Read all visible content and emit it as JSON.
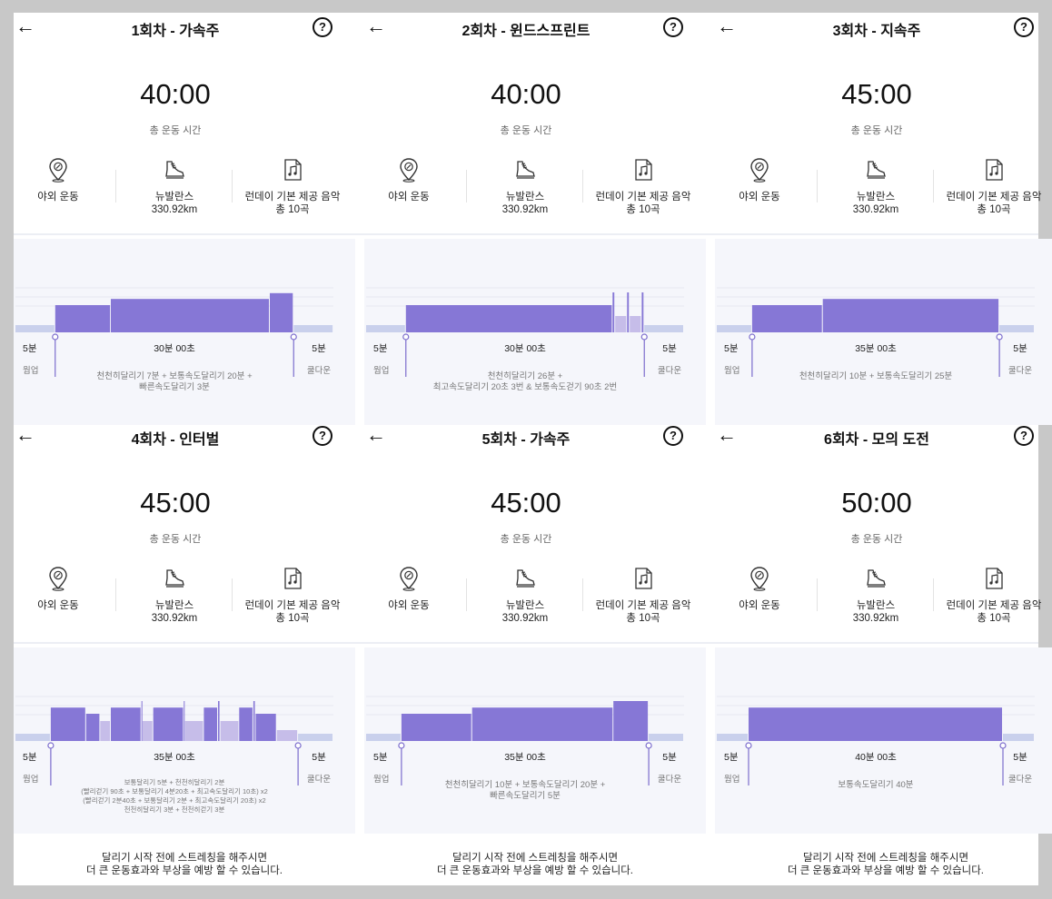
{
  "common": {
    "time_label": "총 운동 시간",
    "location": "야외 운동",
    "shoe_name": "뉴발란스",
    "shoe_distance": "330.92km",
    "music_title": "런데이 기본 제공 음악",
    "music_count": "총 10곡",
    "warmup_time": "5분",
    "warmup_label": "웜업",
    "cooldown_time": "5분",
    "cooldown_label": "쿨다운",
    "footer_line1": "달리기 시작 전에 스트레칭을 해주시면",
    "footer_line2": "더 큰 운동효과와 부상을 예방 할 수 있습니다.",
    "icons": {
      "back": "back-arrow-icon",
      "help": "help-circle-icon",
      "location": "location-pin-icon",
      "shoe": "running-shoe-icon",
      "music": "music-note-icon"
    },
    "colors": {
      "bar": "#8677d6",
      "bar_light": "#c6bde9",
      "segment_bg": "#c9d0ec",
      "chart_bg": "#f5f6fb"
    }
  },
  "panels": [
    {
      "title": "1회차 - 가속주",
      "total_time": "40:00",
      "main_duration": "30분 00초",
      "desc_lines": [
        "천천히달리기 7분 + 보통속도달리기 20분 +",
        "빠른속도달리기 3분"
      ],
      "intensity_profile": [
        {
          "minutes": 5,
          "level": 0.2,
          "tone": "bg"
        },
        {
          "minutes": 7,
          "level": 0.75,
          "tone": "main"
        },
        {
          "minutes": 20,
          "level": 0.92,
          "tone": "main"
        },
        {
          "minutes": 3,
          "level": 1.08,
          "tone": "main"
        },
        {
          "minutes": 5,
          "level": 0.2,
          "tone": "bg"
        }
      ]
    },
    {
      "title": "2회차 - 윈드스프린트",
      "total_time": "40:00",
      "main_duration": "30분 00초",
      "desc_lines": [
        "천천히달리기 26분 +",
        "최고속도달리기 20초 3번 & 보통속도걷기 90초 2번"
      ],
      "intensity_profile": [
        {
          "minutes": 5,
          "level": 0.2,
          "tone": "bg"
        },
        {
          "minutes": 26,
          "level": 0.75,
          "tone": "main"
        },
        {
          "minutes": 0.33,
          "level": 1.1,
          "tone": "main"
        },
        {
          "minutes": 1.5,
          "level": 0.45,
          "tone": "light"
        },
        {
          "minutes": 0.33,
          "level": 1.1,
          "tone": "main"
        },
        {
          "minutes": 1.5,
          "level": 0.45,
          "tone": "light"
        },
        {
          "minutes": 0.33,
          "level": 1.1,
          "tone": "main"
        },
        {
          "minutes": 5,
          "level": 0.2,
          "tone": "bg"
        }
      ]
    },
    {
      "title": "3회차 - 지속주",
      "total_time": "45:00",
      "main_duration": "35분 00초",
      "desc_lines": [
        "천천히달리기 10분 + 보통속도달리기 25분"
      ],
      "intensity_profile": [
        {
          "minutes": 5,
          "level": 0.2,
          "tone": "bg"
        },
        {
          "minutes": 10,
          "level": 0.75,
          "tone": "main"
        },
        {
          "minutes": 25,
          "level": 0.92,
          "tone": "main"
        },
        {
          "minutes": 5,
          "level": 0.2,
          "tone": "bg"
        }
      ]
    },
    {
      "title": "4회차 - 인터벌",
      "total_time": "45:00",
      "main_duration": "35분 00초",
      "desc_small": true,
      "desc_lines": [
        "보통달리기 5분 + 천천히달리기 2분",
        "(빨리걷기 90초 + 보통달리기 4분20초 + 최고속도달리기 10초) x2",
        "(빨리걷기 2분40초 + 보통달리기 2분 + 최고속도달리기 20초) x2",
        "천천히달리기 3분 + 천천히걷기 3분"
      ],
      "intensity_profile": [
        {
          "minutes": 5,
          "level": 0.2,
          "tone": "bg"
        },
        {
          "minutes": 5,
          "level": 0.92,
          "tone": "main"
        },
        {
          "minutes": 2,
          "level": 0.75,
          "tone": "main"
        },
        {
          "minutes": 1.5,
          "level": 0.55,
          "tone": "light"
        },
        {
          "minutes": 4.33,
          "level": 0.92,
          "tone": "main"
        },
        {
          "minutes": 0.17,
          "level": 1.1,
          "tone": "main"
        },
        {
          "minutes": 1.5,
          "level": 0.55,
          "tone": "light"
        },
        {
          "minutes": 4.33,
          "level": 0.92,
          "tone": "main"
        },
        {
          "minutes": 0.17,
          "level": 1.1,
          "tone": "main"
        },
        {
          "minutes": 2.67,
          "level": 0.55,
          "tone": "light"
        },
        {
          "minutes": 2,
          "level": 0.92,
          "tone": "main"
        },
        {
          "minutes": 0.33,
          "level": 1.1,
          "tone": "main"
        },
        {
          "minutes": 2.67,
          "level": 0.55,
          "tone": "light"
        },
        {
          "minutes": 2,
          "level": 0.92,
          "tone": "main"
        },
        {
          "minutes": 0.33,
          "level": 1.1,
          "tone": "main"
        },
        {
          "minutes": 3,
          "level": 0.75,
          "tone": "main"
        },
        {
          "minutes": 3,
          "level": 0.3,
          "tone": "light"
        },
        {
          "minutes": 5,
          "level": 0.2,
          "tone": "bg"
        }
      ]
    },
    {
      "title": "5회차 - 가속주",
      "total_time": "45:00",
      "main_duration": "35분 00초",
      "desc_lines": [
        "천천히달리기 10분 + 보통속도달리기 20분 +",
        "빠른속도달리기 5분"
      ],
      "intensity_profile": [
        {
          "minutes": 5,
          "level": 0.2,
          "tone": "bg"
        },
        {
          "minutes": 10,
          "level": 0.75,
          "tone": "main"
        },
        {
          "minutes": 20,
          "level": 0.92,
          "tone": "main"
        },
        {
          "minutes": 5,
          "level": 1.1,
          "tone": "main"
        },
        {
          "minutes": 5,
          "level": 0.2,
          "tone": "bg"
        }
      ]
    },
    {
      "title": "6회차 - 모의 도전",
      "total_time": "50:00",
      "main_duration": "40분 00초",
      "desc_lines": [
        "보통속도달리기 40분"
      ],
      "intensity_profile": [
        {
          "minutes": 5,
          "level": 0.2,
          "tone": "bg"
        },
        {
          "minutes": 40,
          "level": 0.92,
          "tone": "main"
        },
        {
          "minutes": 5,
          "level": 0.2,
          "tone": "bg"
        }
      ]
    }
  ]
}
